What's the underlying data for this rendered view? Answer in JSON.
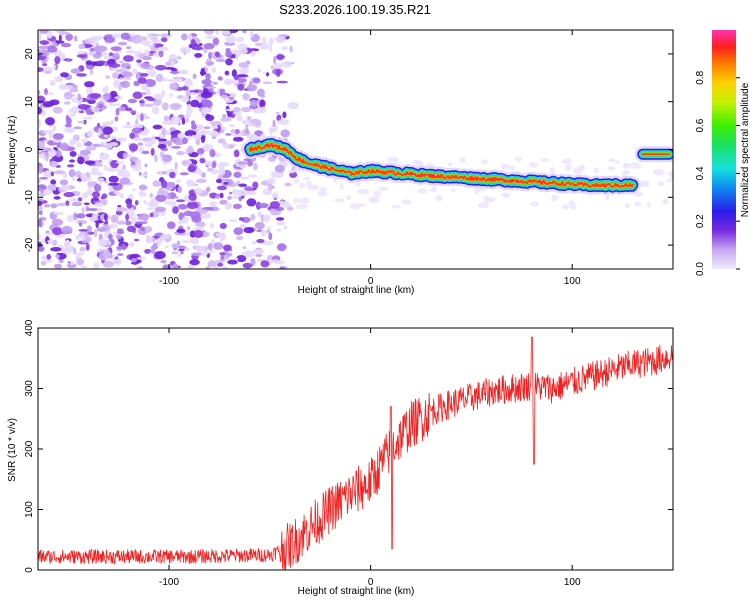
{
  "title": "S233.2026.100.19.35.R21",
  "colors": {
    "snr_line": "#ee2222",
    "axis": "#000000"
  },
  "chart_data": [
    {
      "type": "heatmap",
      "xlabel": "Height of straight line (km)",
      "ylabel": "Frequency (Hz)",
      "xlim": [
        -165,
        150
      ],
      "ylim": [
        -25,
        25
      ],
      "xticks": [
        -100,
        0,
        100
      ],
      "yticks": [
        -20,
        -10,
        0,
        10,
        20
      ],
      "colorbar": {
        "label": "Normalized spectral amplitude",
        "range": [
          0,
          1
        ],
        "ticks": [
          0.0,
          0.2,
          0.4,
          0.6,
          0.8
        ],
        "tick_labels": [
          "0.0",
          "0.2",
          "0.4",
          "0.6",
          "0.8"
        ]
      },
      "ridge": {
        "description_points": [
          [
            -60,
            0
          ],
          [
            -50,
            1
          ],
          [
            -42,
            0
          ],
          [
            -36,
            -2
          ],
          [
            -30,
            -3
          ],
          [
            -20,
            -4
          ],
          [
            -10,
            -5
          ],
          [
            0,
            -4.5
          ],
          [
            15,
            -5
          ],
          [
            30,
            -5.5
          ],
          [
            50,
            -6
          ],
          [
            70,
            -6.5
          ],
          [
            90,
            -7
          ],
          [
            110,
            -7.5
          ],
          [
            130,
            -7.5
          ]
        ],
        "isolated_segment": [
          [
            135,
            -1
          ],
          [
            148,
            -1
          ]
        ]
      }
    },
    {
      "type": "line",
      "xlabel": "Height of straight line (km)",
      "ylabel": "SNR (10 * v/v)",
      "xlim": [
        -165,
        150
      ],
      "ylim": [
        0,
        400
      ],
      "xticks": [
        -100,
        0,
        100
      ],
      "yticks": [
        0,
        100,
        200,
        300,
        400
      ],
      "series": [
        {
          "name": "SNR",
          "trend": {
            "x": [
              -165,
              -90,
              -50,
              -40,
              -30,
              -20,
              -10,
              0,
              10,
              20,
              30,
              40,
              50,
              60,
              70,
              80,
              90,
              100,
              110,
              120,
              130,
              140,
              150
            ],
            "y": [
              22,
              22,
              25,
              40,
              70,
              100,
              125,
              145,
              200,
              240,
              262,
              275,
              285,
              295,
              300,
              305,
              300,
              310,
              320,
              330,
              340,
              345,
              355
            ]
          },
          "features": {
            "peak": [
              80,
              385
            ],
            "dip": [
              81,
              175
            ],
            "spike": [
              10,
              270
            ],
            "drop": [
              10,
              35
            ]
          }
        }
      ]
    }
  ]
}
